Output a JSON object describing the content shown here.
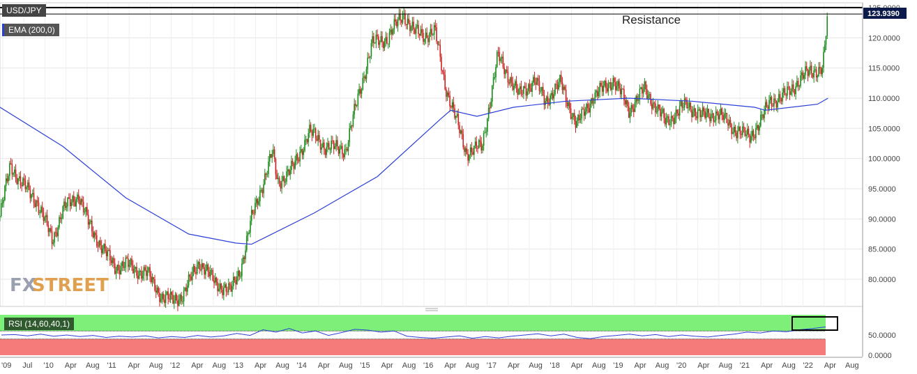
{
  "chart_data": [
    {
      "type": "candlestick",
      "title": "USD/JPY",
      "indicator": "EMA (200,0)",
      "last_price": "123.9390",
      "annotation": "Resistance",
      "resistance_levels": [
        125.0,
        123.939
      ],
      "ylim": [
        75.5,
        125.8
      ],
      "y_ticks": [
        "125.0000",
        "120.0000",
        "115.0000",
        "110.0000",
        "105.0000",
        "100.0000",
        "95.0000",
        "90.0000",
        "85.0000",
        "80.0000"
      ],
      "x_ticks": [
        "'09",
        "Jul",
        "'10",
        "Apr",
        "Aug",
        "'11",
        "Apr",
        "Aug",
        "'12",
        "Apr",
        "Aug",
        "'13",
        "Apr",
        "Aug",
        "'14",
        "Apr",
        "Aug",
        "'15",
        "Apr",
        "Aug",
        "'16",
        "Apr",
        "Aug",
        "'17",
        "Apr",
        "Aug",
        "'18",
        "Apr",
        "Aug",
        "'19",
        "Apr",
        "Aug",
        "'20",
        "Apr",
        "Aug",
        "'21",
        "Apr",
        "Aug",
        "'22",
        "Apr",
        "Aug"
      ],
      "price_path": [
        [
          "2009-01",
          90.5
        ],
        [
          "2009-03",
          99.0
        ],
        [
          "2009-05",
          96.0
        ],
        [
          "2009-08",
          93.0
        ],
        [
          "2009-11",
          86.5
        ],
        [
          "2010-01",
          91.5
        ],
        [
          "2010-04",
          94.0
        ],
        [
          "2010-06",
          89.0
        ],
        [
          "2010-09",
          84.5
        ],
        [
          "2010-11",
          82.0
        ],
        [
          "2011-01",
          82.5
        ],
        [
          "2011-03",
          81.5
        ],
        [
          "2011-05",
          81.0
        ],
        [
          "2011-08",
          77.0
        ],
        [
          "2011-10",
          76.5
        ],
        [
          "2011-12",
          77.5
        ],
        [
          "2012-03",
          83.0
        ],
        [
          "2012-06",
          79.5
        ],
        [
          "2012-09",
          78.0
        ],
        [
          "2012-11",
          82.0
        ],
        [
          "2013-01",
          90.0
        ],
        [
          "2013-05",
          101.0
        ],
        [
          "2013-06",
          96.0
        ],
        [
          "2013-09",
          98.5
        ],
        [
          "2013-12",
          104.5
        ],
        [
          "2014-03",
          102.0
        ],
        [
          "2014-07",
          101.5
        ],
        [
          "2014-09",
          109.0
        ],
        [
          "2014-12",
          119.0
        ],
        [
          "2015-03",
          120.0
        ],
        [
          "2015-06",
          124.0
        ],
        [
          "2015-08",
          121.0
        ],
        [
          "2015-10",
          120.5
        ],
        [
          "2015-12",
          121.0
        ],
        [
          "2016-02",
          112.0
        ],
        [
          "2016-06",
          101.0
        ],
        [
          "2016-09",
          102.0
        ],
        [
          "2016-11",
          112.0
        ],
        [
          "2016-12",
          117.0
        ],
        [
          "2017-04",
          110.5
        ],
        [
          "2017-07",
          113.0
        ],
        [
          "2017-09",
          109.5
        ],
        [
          "2017-12",
          112.5
        ],
        [
          "2018-03",
          105.5
        ],
        [
          "2018-06",
          110.0
        ],
        [
          "2018-10",
          113.0
        ],
        [
          "2018-12",
          110.0
        ],
        [
          "2019-01",
          108.0
        ],
        [
          "2019-04",
          111.5
        ],
        [
          "2019-08",
          106.0
        ],
        [
          "2019-12",
          109.0
        ],
        [
          "2020-03",
          107.0
        ],
        [
          "2020-06",
          107.5
        ],
        [
          "2020-09",
          105.0
        ],
        [
          "2020-12",
          103.5
        ],
        [
          "2021-02",
          106.0
        ],
        [
          "2021-04",
          109.5
        ],
        [
          "2021-07",
          110.5
        ],
        [
          "2021-10",
          113.5
        ],
        [
          "2021-12",
          114.5
        ],
        [
          "2022-02",
          115.0
        ],
        [
          "2022-03",
          124.0
        ]
      ],
      "ema_200": [
        [
          "2009-01",
          108.5
        ],
        [
          "2010-01",
          102.0
        ],
        [
          "2011-01",
          93.5
        ],
        [
          "2012-01",
          87.5
        ],
        [
          "2012-10",
          86.0
        ],
        [
          "2013-01",
          85.8
        ],
        [
          "2014-01",
          91.0
        ],
        [
          "2015-01",
          97.0
        ],
        [
          "2016-01",
          106.5
        ],
        [
          "2016-03",
          108.0
        ],
        [
          "2016-08",
          107.0
        ],
        [
          "2017-03",
          108.5
        ],
        [
          "2018-01",
          109.5
        ],
        [
          "2019-01",
          110.0
        ],
        [
          "2020-01",
          109.5
        ],
        [
          "2021-01",
          108.5
        ],
        [
          "2021-03",
          108.0
        ],
        [
          "2022-01",
          109.0
        ],
        [
          "2022-03",
          110.0
        ]
      ]
    },
    {
      "type": "line",
      "title": "RSI (14,60,40,1)",
      "ylim": [
        0,
        100
      ],
      "y_ticks": [
        "50.0000",
        "0.0000"
      ],
      "bands": {
        "upper": 60,
        "lower": 40
      },
      "values": [
        50,
        51,
        48,
        52,
        47,
        50,
        46,
        49,
        44,
        47,
        45,
        48,
        43,
        46,
        44,
        49,
        45,
        48,
        54,
        49,
        63,
        57,
        66,
        55,
        60,
        49,
        56,
        64,
        62,
        57,
        60,
        47,
        44,
        42,
        45,
        48,
        42,
        46,
        43,
        47,
        50,
        53,
        48,
        52,
        44,
        41,
        46,
        49,
        52,
        48,
        51,
        46,
        50,
        47,
        45,
        49,
        52,
        57,
        55,
        60,
        58,
        63,
        66,
        70
      ]
    }
  ],
  "colors": {
    "candle": "#1a8a1a",
    "candle_down": "#cc2222",
    "ema": "#2a3fd8",
    "rsi": "#2a3fd8",
    "rsi_high": "#7ef07a",
    "rsi_low": "#f57b7b"
  },
  "labels": {
    "pair": "USD/JPY",
    "ema": "EMA (200,0)",
    "rsi": "RSI (14,60,40,1)",
    "price": "123.9390",
    "watermark_left": "FX",
    "watermark_right": "STREET"
  }
}
